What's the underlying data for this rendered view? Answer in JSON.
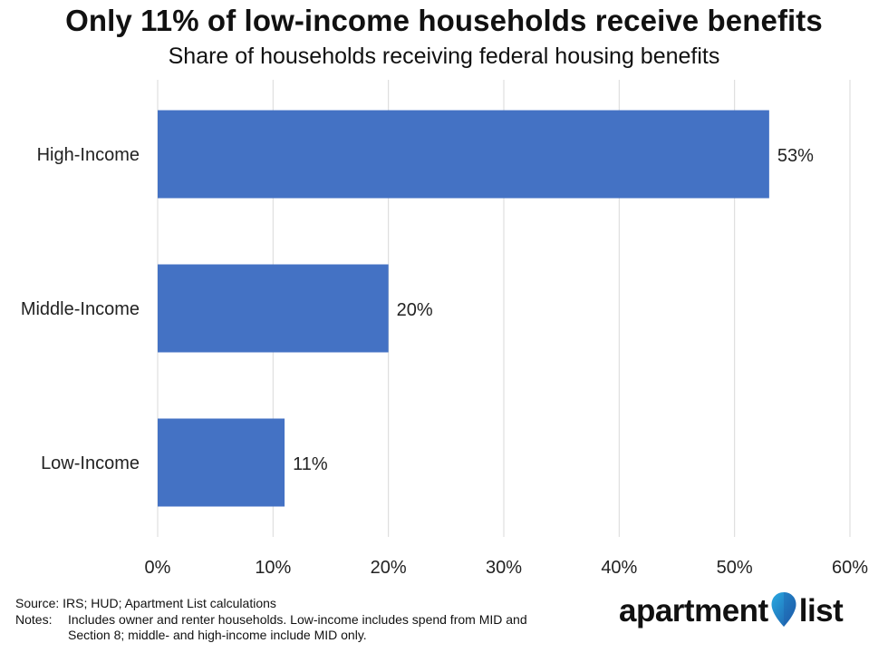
{
  "chart_data": {
    "type": "bar",
    "orientation": "horizontal",
    "title": "Only 11% of low-income households receive benefits",
    "subtitle": "Share of households receiving federal housing benefits",
    "categories": [
      "High-Income",
      "Middle-Income",
      "Low-Income"
    ],
    "values": [
      53,
      20,
      11
    ],
    "data_labels": [
      "53%",
      "20%",
      "11%"
    ],
    "xlim": [
      0,
      60
    ],
    "x_ticks": [
      0,
      10,
      20,
      30,
      40,
      50,
      60
    ],
    "x_tick_labels": [
      "0%",
      "10%",
      "20%",
      "30%",
      "40%",
      "50%",
      "60%"
    ],
    "grid": "vertical",
    "legend": "none",
    "bar_color": "#4472C4",
    "grid_color": "#D9D9D9"
  },
  "footer": {
    "source": "Source: IRS; HUD; Apartment List calculations",
    "notes_label": "Notes:",
    "notes_text": "Includes owner and renter households. Low-income includes spend from MID and Section 8; middle- and high-income include MID only."
  },
  "logo": {
    "word1": "apartment",
    "word2": "list",
    "pin_color_top": "#29A9E1",
    "pin_color_bottom": "#1E5AA8"
  }
}
